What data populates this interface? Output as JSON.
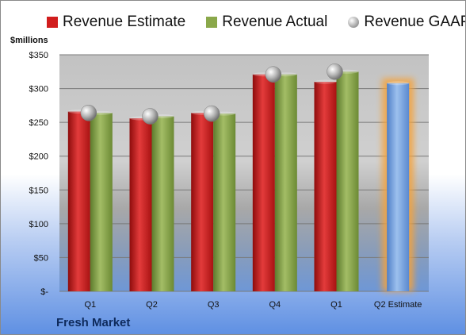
{
  "chart_data": {
    "type": "bar",
    "unit_label": "$millions",
    "categories": [
      "Q1",
      "Q2",
      "Q3",
      "Q4",
      "Q1",
      "Q2 Estimate"
    ],
    "series": [
      {
        "name": "Revenue Estimate",
        "kind": "bar",
        "color": "#d11d1d",
        "values": [
          266,
          256,
          264,
          321,
          310,
          null
        ]
      },
      {
        "name": "Revenue Actual",
        "kind": "bar",
        "color": "#8aa84a",
        "values": [
          264,
          259,
          263,
          321,
          325,
          null
        ]
      },
      {
        "name": "Revenue GAAP",
        "kind": "marker",
        "color": "#a6a6a6",
        "values": [
          264,
          259,
          263,
          321,
          325,
          null
        ]
      },
      {
        "name": "",
        "kind": "bar",
        "color": "#6f9ede",
        "values": [
          null,
          null,
          null,
          null,
          null,
          308
        ]
      }
    ],
    "yticks": [
      0,
      50,
      100,
      150,
      200,
      250,
      300,
      350
    ],
    "ytick_labels": [
      "$-",
      "$50",
      "$100",
      "$150",
      "$200",
      "$250",
      "$300",
      "$350"
    ],
    "ylim": [
      0,
      350
    ],
    "grid": true,
    "legend_position": "top"
  },
  "footer_title": "Fresh Market"
}
